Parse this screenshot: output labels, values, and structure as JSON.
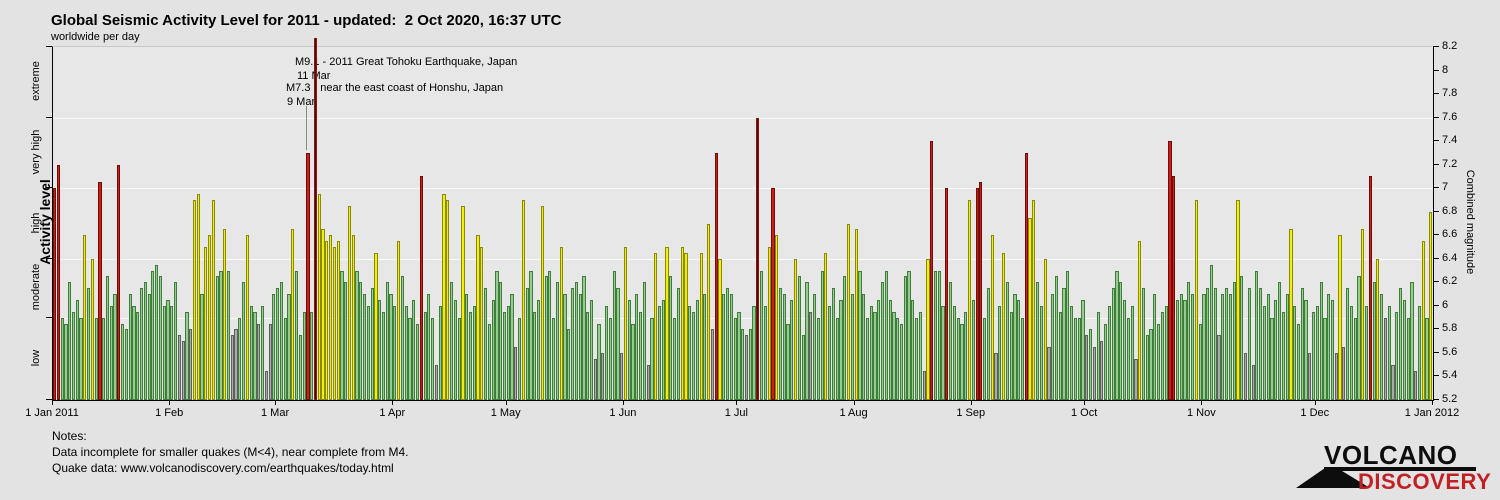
{
  "title": "Global Seismic Activity Level for 2011 - updated:  2 Oct 2020, 16:37 UTC",
  "subtitle": "worldwide per day",
  "notes": {
    "heading": "Notes:",
    "line1": "Data incomplete for smaller quakes (M<4), near complete from M4.",
    "line2": "Quake data: www.volcanodiscovery.com/earthquakes/today.html"
  },
  "logo": {
    "top": "VOLCANO",
    "bottom": "DISCOVERY",
    "accent": "#c32026"
  },
  "chart_data": {
    "type": "bar",
    "title": "Global Seismic Activity Level for 2011",
    "xlabel": "",
    "ylabel_left": "Activity level",
    "ylabel_right": "Combined magnitude",
    "y_right": {
      "min": 5.2,
      "max": 8.2,
      "step": 0.2
    },
    "grid_values": [
      7.6,
      7.0,
      6.4,
      5.9
    ],
    "left_tick_values": [
      8.2,
      7.6,
      7.0,
      6.4,
      5.9,
      5.2
    ],
    "activity_bands": [
      {
        "label": "low",
        "from": 5.2,
        "to": 5.9
      },
      {
        "label": "moderate",
        "from": 5.9,
        "to": 6.4
      },
      {
        "label": "high",
        "from": 6.4,
        "to": 7.0
      },
      {
        "label": "very high",
        "from": 7.0,
        "to": 7.6
      },
      {
        "label": "extreme",
        "from": 7.6,
        "to": 8.2
      }
    ],
    "x_axis": {
      "tick_days": [
        0,
        31,
        59,
        90,
        120,
        151,
        181,
        212,
        243,
        273,
        304,
        334,
        365
      ],
      "labels": [
        "1 Jan 2011",
        "1 Feb",
        "1 Mar",
        "1 Apr",
        "1 May",
        "1 Jun",
        "1 Jul",
        "1 Aug",
        "1 Sep",
        "1 Oct",
        "1 Nov",
        "1 Dec",
        "1 Jan 2012"
      ]
    },
    "annotations": [
      {
        "lines": [
          "M9.1 - 2011 Great Tohoku Earthquake, Japan",
          "11 Mar"
        ],
        "day": 69,
        "value": 9.1
      },
      {
        "lines": [
          "M7.3 - near the east coast of Honshu, Japan",
          "9 Mar"
        ],
        "day": 67,
        "value": 7.3
      }
    ],
    "legend": "none",
    "colors": {
      "g": {
        "fill": "#97cc90",
        "edge": "#3e7d3a",
        "meaning": "green-normal"
      },
      "y": {
        "fill": "#f2ee0b",
        "edge": "#8a8a09",
        "meaning": "yellow-elevated"
      },
      "r": {
        "fill": "#cf1d15",
        "edge": "#6e0e08",
        "meaning": "red-major-quake"
      },
      "d": {
        "fill": "#4a0b09",
        "edge": "#8b1510",
        "meaning": "dark-red-extreme"
      },
      "n": {
        "fill": "#ababab",
        "edge": "#5f5f5f",
        "meaning": "gray-incomplete"
      }
    },
    "days": [
      [
        "r",
        7.0
      ],
      [
        "r",
        7.2
      ],
      [
        "g",
        5.9
      ],
      [
        "g",
        5.85
      ],
      [
        "g",
        6.2
      ],
      [
        "g",
        5.95
      ],
      [
        "g",
        6.05
      ],
      [
        "g",
        5.9
      ],
      [
        "y",
        6.6
      ],
      [
        "g",
        6.15
      ],
      [
        "y",
        6.4
      ],
      [
        "g",
        5.9
      ],
      [
        "r",
        7.05
      ],
      [
        "g",
        5.9
      ],
      [
        "g",
        6.25
      ],
      [
        "g",
        6.0
      ],
      [
        "g",
        6.1
      ],
      [
        "r",
        7.2
      ],
      [
        "g",
        5.85
      ],
      [
        "g",
        5.8
      ],
      [
        "g",
        6.1
      ],
      [
        "g",
        6.0
      ],
      [
        "g",
        5.95
      ],
      [
        "g",
        6.15
      ],
      [
        "g",
        6.2
      ],
      [
        "g",
        6.1
      ],
      [
        "g",
        6.3
      ],
      [
        "g",
        6.35
      ],
      [
        "g",
        6.25
      ],
      [
        "g",
        6.0
      ],
      [
        "g",
        6.05
      ],
      [
        "g",
        6.0
      ],
      [
        "g",
        6.2
      ],
      [
        "n",
        5.75
      ],
      [
        "n",
        5.7
      ],
      [
        "g",
        5.95
      ],
      [
        "n",
        5.8
      ],
      [
        "y",
        6.9
      ],
      [
        "y",
        6.95
      ],
      [
        "g",
        6.1
      ],
      [
        "y",
        6.5
      ],
      [
        "y",
        6.6
      ],
      [
        "y",
        6.9
      ],
      [
        "g",
        6.25
      ],
      [
        "g",
        6.3
      ],
      [
        "y",
        6.65
      ],
      [
        "g",
        6.3
      ],
      [
        "n",
        5.75
      ],
      [
        "n",
        5.8
      ],
      [
        "g",
        5.9
      ],
      [
        "g",
        6.2
      ],
      [
        "y",
        6.6
      ],
      [
        "g",
        6.0
      ],
      [
        "g",
        5.95
      ],
      [
        "n",
        5.85
      ],
      [
        "g",
        6.0
      ],
      [
        "n",
        5.45
      ],
      [
        "n",
        5.85
      ],
      [
        "g",
        6.1
      ],
      [
        "g",
        6.15
      ],
      [
        "g",
        6.2
      ],
      [
        "g",
        5.9
      ],
      [
        "g",
        6.1
      ],
      [
        "y",
        6.65
      ],
      [
        "g",
        6.3
      ],
      [
        "g",
        5.75
      ],
      [
        "g",
        5.95
      ],
      [
        "r",
        7.3
      ],
      [
        "g",
        5.95
      ],
      [
        "d",
        8.3
      ],
      [
        "y",
        6.95
      ],
      [
        "y",
        6.65
      ],
      [
        "y",
        6.55
      ],
      [
        "y",
        6.6
      ],
      [
        "y",
        6.5
      ],
      [
        "y",
        6.55
      ],
      [
        "g",
        6.3
      ],
      [
        "g",
        6.2
      ],
      [
        "y",
        6.85
      ],
      [
        "y",
        6.6
      ],
      [
        "g",
        6.3
      ],
      [
        "g",
        6.2
      ],
      [
        "g",
        6.1
      ],
      [
        "g",
        6.0
      ],
      [
        "g",
        6.15
      ],
      [
        "y",
        6.45
      ],
      [
        "g",
        6.05
      ],
      [
        "g",
        5.95
      ],
      [
        "g",
        6.2
      ],
      [
        "g",
        6.1
      ],
      [
        "g",
        6.0
      ],
      [
        "y",
        6.55
      ],
      [
        "g",
        6.25
      ],
      [
        "g",
        6.0
      ],
      [
        "g",
        5.9
      ],
      [
        "g",
        6.05
      ],
      [
        "g",
        5.85
      ],
      [
        "r",
        7.1
      ],
      [
        "g",
        5.95
      ],
      [
        "g",
        6.1
      ],
      [
        "g",
        5.9
      ],
      [
        "n",
        5.5
      ],
      [
        "g",
        6.0
      ],
      [
        "y",
        6.95
      ],
      [
        "y",
        6.9
      ],
      [
        "g",
        6.2
      ],
      [
        "g",
        6.05
      ],
      [
        "g",
        5.9
      ],
      [
        "y",
        6.85
      ],
      [
        "g",
        6.1
      ],
      [
        "g",
        5.95
      ],
      [
        "g",
        6.0
      ],
      [
        "y",
        6.6
      ],
      [
        "y",
        6.5
      ],
      [
        "g",
        6.15
      ],
      [
        "g",
        5.85
      ],
      [
        "g",
        6.05
      ],
      [
        "g",
        6.3
      ],
      [
        "g",
        6.2
      ],
      [
        "g",
        5.95
      ],
      [
        "g",
        6.0
      ],
      [
        "g",
        6.1
      ],
      [
        "n",
        5.65
      ],
      [
        "g",
        5.9
      ],
      [
        "y",
        6.9
      ],
      [
        "g",
        6.15
      ],
      [
        "g",
        6.3
      ],
      [
        "g",
        5.95
      ],
      [
        "g",
        6.05
      ],
      [
        "y",
        6.85
      ],
      [
        "g",
        6.25
      ],
      [
        "g",
        6.3
      ],
      [
        "g",
        5.9
      ],
      [
        "g",
        6.2
      ],
      [
        "y",
        6.5
      ],
      [
        "g",
        6.1
      ],
      [
        "g",
        5.8
      ],
      [
        "g",
        6.15
      ],
      [
        "g",
        6.2
      ],
      [
        "g",
        6.1
      ],
      [
        "g",
        6.25
      ],
      [
        "g",
        5.95
      ],
      [
        "g",
        6.05
      ],
      [
        "n",
        5.55
      ],
      [
        "g",
        5.85
      ],
      [
        "n",
        5.6
      ],
      [
        "g",
        6.0
      ],
      [
        "g",
        5.9
      ],
      [
        "g",
        6.3
      ],
      [
        "g",
        6.15
      ],
      [
        "n",
        5.6
      ],
      [
        "y",
        6.5
      ],
      [
        "g",
        6.05
      ],
      [
        "g",
        5.85
      ],
      [
        "g",
        6.1
      ],
      [
        "g",
        5.95
      ],
      [
        "g",
        6.2
      ],
      [
        "n",
        5.5
      ],
      [
        "g",
        5.9
      ],
      [
        "y",
        6.45
      ],
      [
        "g",
        6.0
      ],
      [
        "g",
        6.05
      ],
      [
        "y",
        6.5
      ],
      [
        "g",
        6.25
      ],
      [
        "g",
        5.9
      ],
      [
        "g",
        6.15
      ],
      [
        "y",
        6.5
      ],
      [
        "y",
        6.45
      ],
      [
        "g",
        6.0
      ],
      [
        "g",
        5.95
      ],
      [
        "g",
        6.05
      ],
      [
        "y",
        6.45
      ],
      [
        "g",
        6.1
      ],
      [
        "y",
        6.7
      ],
      [
        "n",
        5.8
      ],
      [
        "r",
        7.3
      ],
      [
        "y",
        6.4
      ],
      [
        "g",
        6.1
      ],
      [
        "g",
        6.15
      ],
      [
        "g",
        6.1
      ],
      [
        "g",
        5.9
      ],
      [
        "g",
        5.95
      ],
      [
        "g",
        5.8
      ],
      [
        "n",
        5.75
      ],
      [
        "g",
        5.8
      ],
      [
        "g",
        6.0
      ],
      [
        "d",
        7.6
      ],
      [
        "g",
        6.3
      ],
      [
        "g",
        6.0
      ],
      [
        "y",
        6.5
      ],
      [
        "r",
        7.0
      ],
      [
        "y",
        6.6
      ],
      [
        "g",
        6.15
      ],
      [
        "g",
        6.1
      ],
      [
        "g",
        5.85
      ],
      [
        "g",
        6.05
      ],
      [
        "y",
        6.4
      ],
      [
        "g",
        6.25
      ],
      [
        "g",
        5.75
      ],
      [
        "g",
        6.2
      ],
      [
        "n",
        5.95
      ],
      [
        "g",
        6.1
      ],
      [
        "g",
        5.9
      ],
      [
        "g",
        6.3
      ],
      [
        "y",
        6.45
      ],
      [
        "g",
        6.0
      ],
      [
        "g",
        6.15
      ],
      [
        "g",
        5.9
      ],
      [
        "g",
        6.05
      ],
      [
        "g",
        6.25
      ],
      [
        "y",
        6.7
      ],
      [
        "g",
        6.1
      ],
      [
        "y",
        6.65
      ],
      [
        "g",
        6.3
      ],
      [
        "g",
        6.1
      ],
      [
        "g",
        5.9
      ],
      [
        "g",
        6.0
      ],
      [
        "g",
        5.95
      ],
      [
        "g",
        6.05
      ],
      [
        "g",
        6.2
      ],
      [
        "g",
        6.3
      ],
      [
        "g",
        6.05
      ],
      [
        "g",
        5.95
      ],
      [
        "g",
        5.9
      ],
      [
        "g",
        5.85
      ],
      [
        "g",
        6.25
      ],
      [
        "g",
        6.3
      ],
      [
        "g",
        6.05
      ],
      [
        "g",
        5.9
      ],
      [
        "g",
        5.95
      ],
      [
        "n",
        5.45
      ],
      [
        "y",
        6.4
      ],
      [
        "r",
        7.4
      ],
      [
        "g",
        6.3
      ],
      [
        "g",
        6.3
      ],
      [
        "g",
        6.0
      ],
      [
        "r",
        7.0
      ],
      [
        "g",
        6.2
      ],
      [
        "g",
        6.0
      ],
      [
        "g",
        5.9
      ],
      [
        "g",
        5.85
      ],
      [
        "g",
        5.95
      ],
      [
        "y",
        6.9
      ],
      [
        "g",
        6.05
      ],
      [
        "r",
        7.0
      ],
      [
        "r",
        7.05
      ],
      [
        "g",
        5.9
      ],
      [
        "g",
        6.15
      ],
      [
        "y",
        6.6
      ],
      [
        "n",
        5.6
      ],
      [
        "g",
        6.0
      ],
      [
        "y",
        6.45
      ],
      [
        "g",
        6.2
      ],
      [
        "g",
        5.95
      ],
      [
        "g",
        6.1
      ],
      [
        "g",
        6.05
      ],
      [
        "g",
        5.9
      ],
      [
        "r",
        7.3
      ],
      [
        "y",
        6.75
      ],
      [
        "y",
        6.9
      ],
      [
        "g",
        6.2
      ],
      [
        "g",
        6.0
      ],
      [
        "y",
        6.4
      ],
      [
        "n",
        5.65
      ],
      [
        "g",
        6.1
      ],
      [
        "g",
        6.25
      ],
      [
        "g",
        5.95
      ],
      [
        "g",
        6.15
      ],
      [
        "g",
        6.3
      ],
      [
        "g",
        6.0
      ],
      [
        "g",
        5.9
      ],
      [
        "g",
        5.9
      ],
      [
        "g",
        6.05
      ],
      [
        "n",
        5.75
      ],
      [
        "g",
        5.8
      ],
      [
        "n",
        5.65
      ],
      [
        "g",
        5.95
      ],
      [
        "n",
        5.7
      ],
      [
        "g",
        5.85
      ],
      [
        "g",
        6.0
      ],
      [
        "g",
        6.15
      ],
      [
        "g",
        6.3
      ],
      [
        "g",
        6.2
      ],
      [
        "g",
        6.05
      ],
      [
        "g",
        5.9
      ],
      [
        "g",
        6.0
      ],
      [
        "n",
        5.55
      ],
      [
        "y",
        6.55
      ],
      [
        "g",
        6.15
      ],
      [
        "g",
        5.75
      ],
      [
        "g",
        5.8
      ],
      [
        "g",
        6.1
      ],
      [
        "g",
        5.85
      ],
      [
        "g",
        5.95
      ],
      [
        "g",
        6.0
      ],
      [
        "r",
        7.4
      ],
      [
        "r",
        7.1
      ],
      [
        "g",
        6.05
      ],
      [
        "g",
        6.1
      ],
      [
        "g",
        6.05
      ],
      [
        "g",
        6.2
      ],
      [
        "g",
        6.1
      ],
      [
        "y",
        6.9
      ],
      [
        "g",
        5.85
      ],
      [
        "g",
        6.1
      ],
      [
        "g",
        6.15
      ],
      [
        "g",
        6.35
      ],
      [
        "g",
        6.15
      ],
      [
        "n",
        5.75
      ],
      [
        "g",
        6.1
      ],
      [
        "g",
        6.15
      ],
      [
        "g",
        6.1
      ],
      [
        "g",
        6.2
      ],
      [
        "y",
        6.9
      ],
      [
        "g",
        6.25
      ],
      [
        "n",
        5.6
      ],
      [
        "g",
        6.15
      ],
      [
        "n",
        5.5
      ],
      [
        "g",
        6.3
      ],
      [
        "g",
        6.15
      ],
      [
        "g",
        6.0
      ],
      [
        "g",
        6.1
      ],
      [
        "g",
        5.9
      ],
      [
        "g",
        6.05
      ],
      [
        "g",
        6.2
      ],
      [
        "g",
        5.95
      ],
      [
        "g",
        6.1
      ],
      [
        "y",
        6.65
      ],
      [
        "g",
        6.0
      ],
      [
        "g",
        5.85
      ],
      [
        "g",
        6.15
      ],
      [
        "g",
        6.05
      ],
      [
        "n",
        5.6
      ],
      [
        "g",
        5.95
      ],
      [
        "g",
        6.0
      ],
      [
        "g",
        6.2
      ],
      [
        "g",
        5.9
      ],
      [
        "g",
        6.1
      ],
      [
        "g",
        6.05
      ],
      [
        "n",
        5.6
      ],
      [
        "y",
        6.6
      ],
      [
        "n",
        5.65
      ],
      [
        "g",
        6.15
      ],
      [
        "g",
        6.0
      ],
      [
        "g",
        5.9
      ],
      [
        "g",
        6.25
      ],
      [
        "y",
        6.65
      ],
      [
        "g",
        6.0
      ],
      [
        "r",
        7.1
      ],
      [
        "g",
        6.2
      ],
      [
        "y",
        6.4
      ],
      [
        "g",
        6.1
      ],
      [
        "n",
        5.9
      ],
      [
        "g",
        6.0
      ],
      [
        "n",
        5.5
      ],
      [
        "g",
        5.95
      ],
      [
        "g",
        6.15
      ],
      [
        "g",
        6.05
      ],
      [
        "g",
        5.9
      ],
      [
        "g",
        6.2
      ],
      [
        "n",
        5.45
      ],
      [
        "g",
        6.0
      ],
      [
        "y",
        6.55
      ],
      [
        "g",
        5.9
      ],
      [
        "y",
        6.8
      ]
    ]
  }
}
